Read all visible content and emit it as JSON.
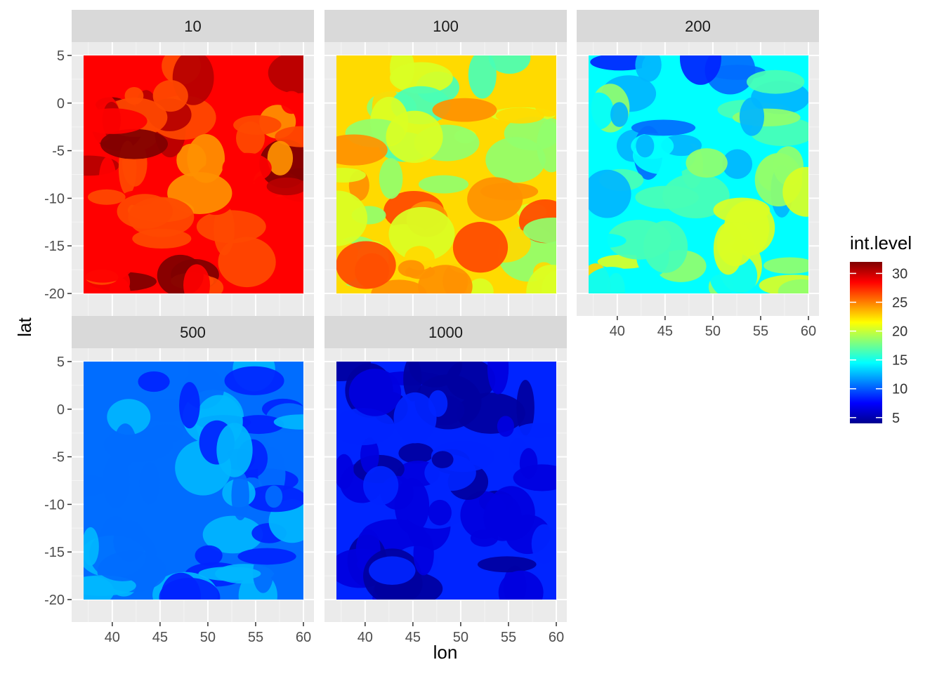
{
  "chart_data": {
    "type": "heatmap",
    "facet_by": "depth",
    "facets": [
      {
        "label": "10",
        "value_range": [
          24,
          32
        ],
        "dominant": 28
      },
      {
        "label": "100",
        "value_range": [
          14,
          28
        ],
        "dominant": 21
      },
      {
        "label": "200",
        "value_range": [
          8,
          22
        ],
        "dominant": 14
      },
      {
        "label": "500",
        "value_range": [
          8,
          13
        ],
        "dominant": 10
      },
      {
        "label": "1000",
        "value_range": [
          4,
          8
        ],
        "dominant": 7
      }
    ],
    "x": {
      "label": "lon",
      "range": [
        37,
        60
      ],
      "ticks": [
        40,
        45,
        50,
        55,
        60
      ],
      "tick_labels": [
        "40",
        "45",
        "50",
        "55",
        "60"
      ]
    },
    "y": {
      "label": "lat",
      "range": [
        -20,
        5
      ],
      "ticks": [
        5,
        0,
        -5,
        -10,
        -15,
        -20
      ],
      "tick_labels": [
        "5",
        "0",
        "-5",
        "-10",
        "-15",
        "-20"
      ]
    },
    "legend": {
      "title": "int.level",
      "placement": "right",
      "range": [
        4,
        32
      ],
      "ticks": [
        30,
        25,
        20,
        15,
        10,
        5
      ],
      "tick_labels": [
        "30",
        "25",
        "20",
        "15",
        "10",
        "5"
      ],
      "colors": [
        "#7f0000",
        "#ff0000",
        "#ff7f00",
        "#ffff00",
        "#7fff7f",
        "#00ffff",
        "#007fff",
        "#0000ff",
        "#00008f"
      ]
    },
    "panel_background": "#ebebeb",
    "strip_background": "#d9d9d9",
    "grid": true
  }
}
